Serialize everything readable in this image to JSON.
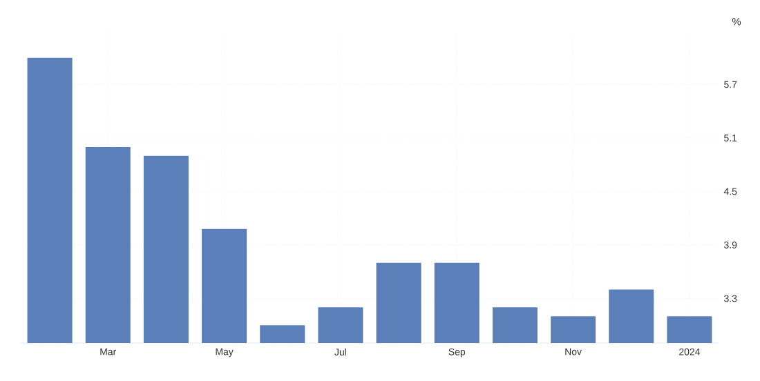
{
  "chart_data": {
    "type": "bar",
    "ylabel": "%",
    "categories": [
      null,
      "Mar",
      null,
      "May",
      null,
      "Jul",
      null,
      "Sep",
      null,
      "Nov",
      null,
      "2024"
    ],
    "values": [
      6.0,
      5.0,
      4.9,
      4.08,
      3.0,
      3.2,
      3.7,
      3.7,
      3.2,
      3.1,
      3.4,
      3.1
    ],
    "color": "#5b7fb8",
    "ylim": [
      2.8,
      6.3
    ],
    "yticks": [
      3.3,
      3.9,
      4.5,
      5.1,
      5.7
    ],
    "grid": true
  }
}
